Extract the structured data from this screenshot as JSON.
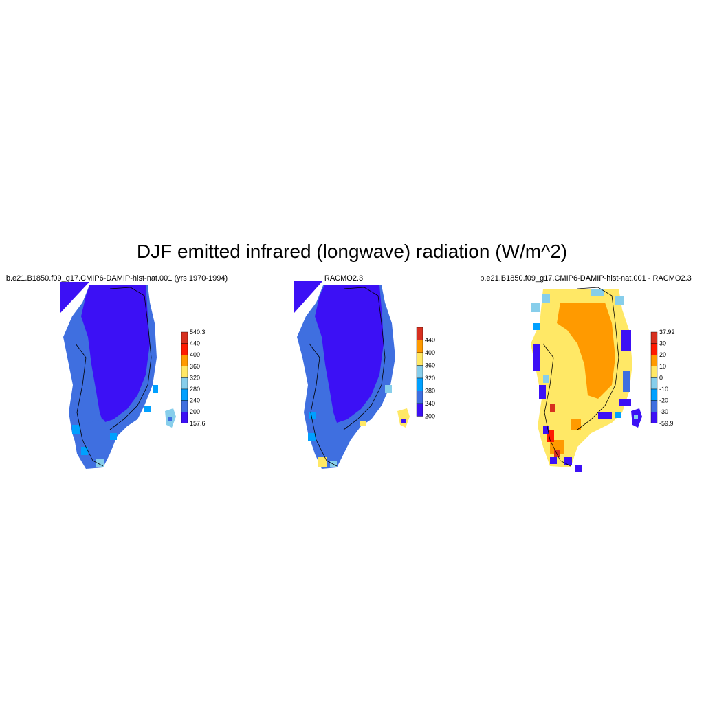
{
  "title": "DJF emitted infrared (longwave) radiation (W/m^2)",
  "panels": [
    {
      "title": "b.e21.B1850.f09_g17.CMIP6-DAMIP-hist-nat.001 (yrs 1970-1994)",
      "colorbar": {
        "labels": [
          "540.3",
          "440",
          "400",
          "360",
          "320",
          "280",
          "240",
          "200",
          "157.6"
        ],
        "colors": [
          "#d7301f",
          "#ff1a00",
          "#ff9a00",
          "#ffe866",
          "#87ceeb",
          "#00a0ff",
          "#3f6fe0",
          "#3c10f5"
        ]
      }
    },
    {
      "title": "RACMO2.3",
      "colorbar": {
        "labels": [
          "440",
          "400",
          "360",
          "320",
          "280",
          "240",
          "200"
        ],
        "colors": [
          "#d7301f",
          "#ff9a00",
          "#ffe866",
          "#87ceeb",
          "#00a0ff",
          "#3f6fe0",
          "#3c10f5"
        ]
      }
    },
    {
      "title": "b.e21.B1850.f09_g17.CMIP6-DAMIP-hist-nat.001 - RACMO2.3",
      "colorbar": {
        "labels": [
          "37.92",
          "30",
          "20",
          "10",
          "0",
          "-10",
          "-20",
          "-30",
          "-59.9"
        ],
        "colors": [
          "#d7301f",
          "#ff1a00",
          "#ff9a00",
          "#ffe866",
          "#87ceeb",
          "#00a0ff",
          "#3f6fe0",
          "#3c10f5"
        ]
      }
    }
  ]
}
